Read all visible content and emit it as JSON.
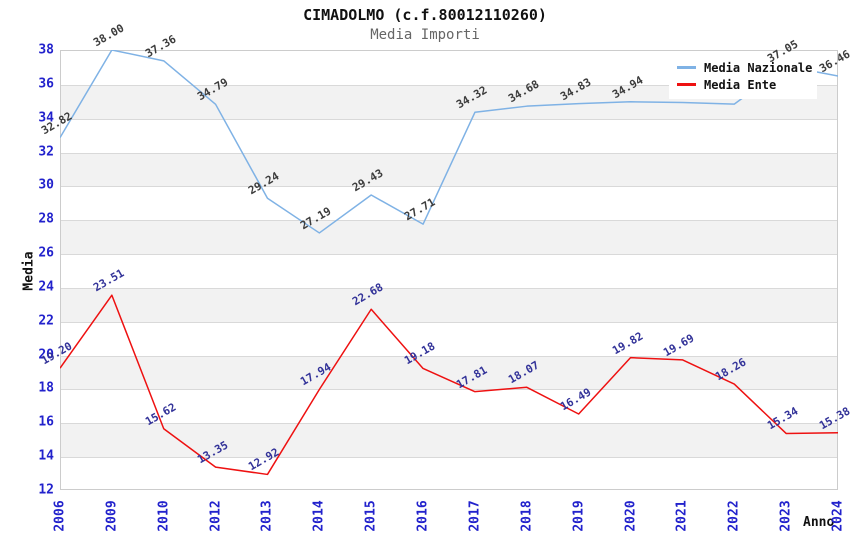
{
  "header": {
    "title": "CIMADOLMO (c.f.80012110260)",
    "subtitle": "Media Importi"
  },
  "axes": {
    "y_title": "Media",
    "x_title": "Anno"
  },
  "legend": {
    "position": "top-right"
  },
  "colors": {
    "axis_tick": "#2222cc",
    "grid": "#d9d9d9",
    "band": "#f2f2f2",
    "plot_border": "#cccccc",
    "title": "#111111",
    "subtitle": "#666666"
  },
  "chart_data": {
    "type": "line",
    "title": "CIMADOLMO (c.f.80012110260)",
    "subtitle": "Media Importi",
    "xlabel": "Anno",
    "ylabel": "Media",
    "ylim": [
      12,
      38
    ],
    "ytick_step": 2,
    "grid": true,
    "legend_position": "top-right",
    "categories": [
      "2006",
      "2009",
      "2010",
      "2012",
      "2013",
      "2014",
      "2015",
      "2016",
      "2017",
      "2018",
      "2019",
      "2020",
      "2021",
      "2022",
      "2023",
      "2024"
    ],
    "series": [
      {
        "name": "Media Nazionale",
        "color": "#7fb2e5",
        "label_color": "#3c3c3c",
        "values": [
          32.82,
          38.0,
          37.36,
          34.79,
          29.24,
          27.19,
          29.43,
          27.71,
          34.32,
          34.68,
          34.83,
          34.94,
          34.9,
          34.8,
          37.05,
          36.46
        ],
        "labels": [
          "32.82",
          "38.00",
          "37.36",
          "34.79",
          "29.24",
          "27.19",
          "29.43",
          "27.71",
          "34.32",
          "34.68",
          "34.83",
          "34.94",
          null,
          null,
          "37.05",
          "36.46"
        ]
      },
      {
        "name": "Media Ente",
        "color": "#ee1111",
        "label_color": "#333399",
        "values": [
          19.2,
          23.51,
          15.62,
          13.35,
          12.92,
          17.94,
          22.68,
          19.18,
          17.81,
          18.07,
          16.49,
          19.82,
          19.69,
          18.26,
          15.34,
          15.38
        ],
        "labels": [
          "19.20",
          "23.51",
          "15.62",
          "13.35",
          "12.92",
          "17.94",
          "22.68",
          "19.18",
          "17.81",
          "18.07",
          "16.49",
          "19.82",
          "19.69",
          "18.26",
          "15.34",
          "15.38"
        ]
      }
    ]
  }
}
